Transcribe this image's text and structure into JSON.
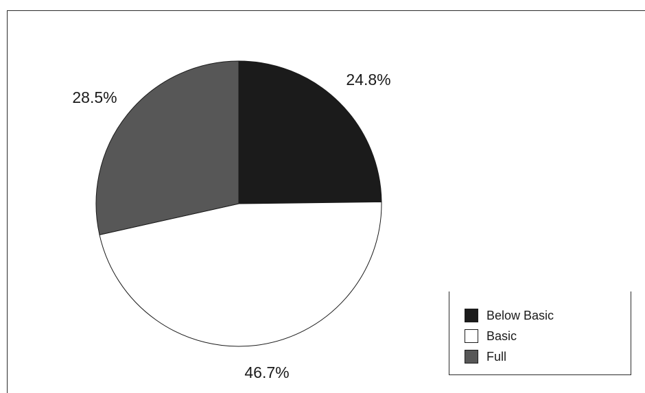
{
  "chart_data": {
    "type": "pie",
    "categories": [
      "Below Basic",
      "Basic",
      "Full"
    ],
    "values": [
      24.8,
      46.7,
      28.5
    ],
    "value_labels": [
      "24.8%",
      "46.7%",
      "28.5%"
    ],
    "colors": [
      "#1b1b1b",
      "#ffffff",
      "#575757"
    ],
    "start_angle": "12 o'clock",
    "direction": "clockwise",
    "legend": {
      "position": "bottom-right",
      "entries": [
        "Below Basic",
        "Basic",
        "Full"
      ]
    }
  }
}
